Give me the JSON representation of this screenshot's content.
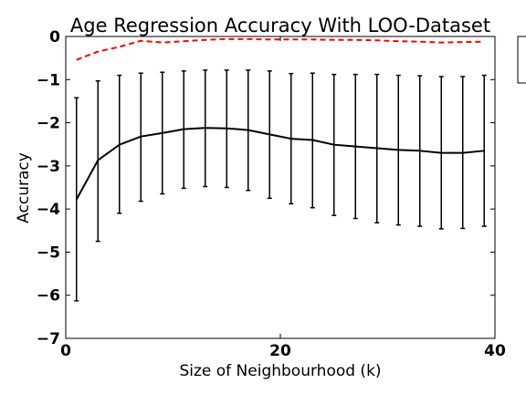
{
  "chart_data": {
    "type": "line",
    "title": "Age Regression Accuracy With LOO-Dataset",
    "xlabel": "Size of Neighbourhood (k)",
    "ylabel": "Accuracy",
    "xlim": [
      0,
      40
    ],
    "ylim": [
      -7,
      0
    ],
    "xticks": [
      0,
      20,
      40
    ],
    "yticks": [
      0,
      -1,
      -2,
      -3,
      -4,
      -5,
      -6,
      -7
    ],
    "grid": false,
    "legend": "top-right, partially cropped",
    "x": [
      1,
      3,
      5,
      7,
      9,
      11,
      13,
      15,
      17,
      19,
      21,
      23,
      25,
      27,
      29,
      31,
      33,
      35,
      37,
      39
    ],
    "series": [
      {
        "color": "#000000",
        "style": "solid",
        "values": [
          -3.78,
          -2.87,
          -2.51,
          -2.32,
          -2.24,
          -2.15,
          -2.12,
          -2.13,
          -2.17,
          -2.27,
          -2.37,
          -2.4,
          -2.51,
          -2.55,
          -2.59,
          -2.63,
          -2.65,
          -2.7,
          -2.7,
          -2.65
        ],
        "error_lower": [
          -6.13,
          -4.75,
          -4.1,
          -3.82,
          -3.65,
          -3.52,
          -3.48,
          -3.5,
          -3.57,
          -3.75,
          -3.88,
          -3.97,
          -4.15,
          -4.22,
          -4.32,
          -4.37,
          -4.4,
          -4.46,
          -4.45,
          -4.4
        ],
        "error_upper": [
          -1.42,
          -1.03,
          -0.9,
          -0.85,
          -0.83,
          -0.8,
          -0.78,
          -0.78,
          -0.78,
          -0.8,
          -0.86,
          -0.85,
          -0.88,
          -0.88,
          -0.88,
          -0.9,
          -0.91,
          -0.93,
          -0.93,
          -0.9
        ]
      },
      {
        "color": "#ff0000",
        "style": "dashed",
        "values": [
          -0.54,
          -0.35,
          -0.24,
          -0.1,
          -0.14,
          -0.11,
          -0.08,
          -0.06,
          -0.06,
          -0.07,
          -0.07,
          -0.07,
          -0.08,
          -0.08,
          -0.09,
          -0.11,
          -0.12,
          -0.14,
          -0.13,
          -0.12
        ]
      }
    ]
  }
}
